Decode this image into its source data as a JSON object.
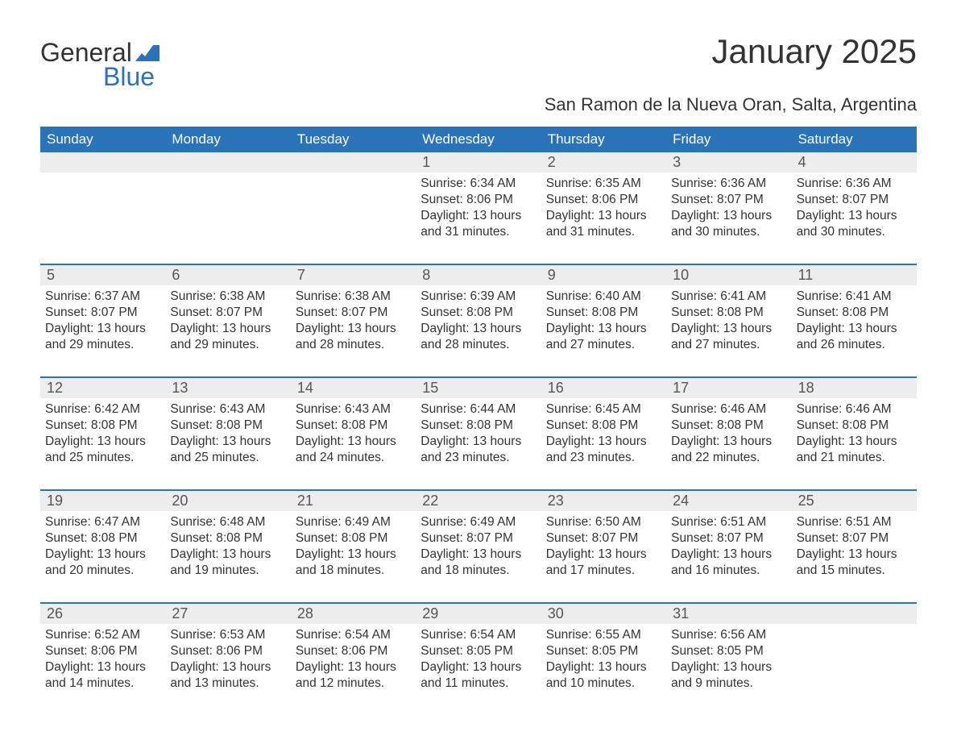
{
  "brand": {
    "line1": "General",
    "line2": "Blue"
  },
  "title": "January 2025",
  "subtitle": "San Ramon de la Nueva Oran, Salta, Argentina",
  "colors": {
    "header_bg": "#2a73b8",
    "header_text": "#ffffff",
    "daynum_bg": "#ededed",
    "text": "#333333",
    "logo_accent": "#2a73b8",
    "page_bg": "#ffffff"
  },
  "typography": {
    "title_fontsize": 42,
    "subtitle_fontsize": 22,
    "weekday_fontsize": 17,
    "daynum_fontsize": 18,
    "detail_fontsize": 15.5
  },
  "weekdays": [
    "Sunday",
    "Monday",
    "Tuesday",
    "Wednesday",
    "Thursday",
    "Friday",
    "Saturday"
  ],
  "weeks": [
    [
      null,
      null,
      null,
      {
        "n": "1",
        "sr": "6:34 AM",
        "ss": "8:06 PM",
        "dl": "13 hours and 31 minutes."
      },
      {
        "n": "2",
        "sr": "6:35 AM",
        "ss": "8:06 PM",
        "dl": "13 hours and 31 minutes."
      },
      {
        "n": "3",
        "sr": "6:36 AM",
        "ss": "8:07 PM",
        "dl": "13 hours and 30 minutes."
      },
      {
        "n": "4",
        "sr": "6:36 AM",
        "ss": "8:07 PM",
        "dl": "13 hours and 30 minutes."
      }
    ],
    [
      {
        "n": "5",
        "sr": "6:37 AM",
        "ss": "8:07 PM",
        "dl": "13 hours and 29 minutes."
      },
      {
        "n": "6",
        "sr": "6:38 AM",
        "ss": "8:07 PM",
        "dl": "13 hours and 29 minutes."
      },
      {
        "n": "7",
        "sr": "6:38 AM",
        "ss": "8:07 PM",
        "dl": "13 hours and 28 minutes."
      },
      {
        "n": "8",
        "sr": "6:39 AM",
        "ss": "8:08 PM",
        "dl": "13 hours and 28 minutes."
      },
      {
        "n": "9",
        "sr": "6:40 AM",
        "ss": "8:08 PM",
        "dl": "13 hours and 27 minutes."
      },
      {
        "n": "10",
        "sr": "6:41 AM",
        "ss": "8:08 PM",
        "dl": "13 hours and 27 minutes."
      },
      {
        "n": "11",
        "sr": "6:41 AM",
        "ss": "8:08 PM",
        "dl": "13 hours and 26 minutes."
      }
    ],
    [
      {
        "n": "12",
        "sr": "6:42 AM",
        "ss": "8:08 PM",
        "dl": "13 hours and 25 minutes."
      },
      {
        "n": "13",
        "sr": "6:43 AM",
        "ss": "8:08 PM",
        "dl": "13 hours and 25 minutes."
      },
      {
        "n": "14",
        "sr": "6:43 AM",
        "ss": "8:08 PM",
        "dl": "13 hours and 24 minutes."
      },
      {
        "n": "15",
        "sr": "6:44 AM",
        "ss": "8:08 PM",
        "dl": "13 hours and 23 minutes."
      },
      {
        "n": "16",
        "sr": "6:45 AM",
        "ss": "8:08 PM",
        "dl": "13 hours and 23 minutes."
      },
      {
        "n": "17",
        "sr": "6:46 AM",
        "ss": "8:08 PM",
        "dl": "13 hours and 22 minutes."
      },
      {
        "n": "18",
        "sr": "6:46 AM",
        "ss": "8:08 PM",
        "dl": "13 hours and 21 minutes."
      }
    ],
    [
      {
        "n": "19",
        "sr": "6:47 AM",
        "ss": "8:08 PM",
        "dl": "13 hours and 20 minutes."
      },
      {
        "n": "20",
        "sr": "6:48 AM",
        "ss": "8:08 PM",
        "dl": "13 hours and 19 minutes."
      },
      {
        "n": "21",
        "sr": "6:49 AM",
        "ss": "8:08 PM",
        "dl": "13 hours and 18 minutes."
      },
      {
        "n": "22",
        "sr": "6:49 AM",
        "ss": "8:07 PM",
        "dl": "13 hours and 18 minutes."
      },
      {
        "n": "23",
        "sr": "6:50 AM",
        "ss": "8:07 PM",
        "dl": "13 hours and 17 minutes."
      },
      {
        "n": "24",
        "sr": "6:51 AM",
        "ss": "8:07 PM",
        "dl": "13 hours and 16 minutes."
      },
      {
        "n": "25",
        "sr": "6:51 AM",
        "ss": "8:07 PM",
        "dl": "13 hours and 15 minutes."
      }
    ],
    [
      {
        "n": "26",
        "sr": "6:52 AM",
        "ss": "8:06 PM",
        "dl": "13 hours and 14 minutes."
      },
      {
        "n": "27",
        "sr": "6:53 AM",
        "ss": "8:06 PM",
        "dl": "13 hours and 13 minutes."
      },
      {
        "n": "28",
        "sr": "6:54 AM",
        "ss": "8:06 PM",
        "dl": "13 hours and 12 minutes."
      },
      {
        "n": "29",
        "sr": "6:54 AM",
        "ss": "8:05 PM",
        "dl": "13 hours and 11 minutes."
      },
      {
        "n": "30",
        "sr": "6:55 AM",
        "ss": "8:05 PM",
        "dl": "13 hours and 10 minutes."
      },
      {
        "n": "31",
        "sr": "6:56 AM",
        "ss": "8:05 PM",
        "dl": "13 hours and 9 minutes."
      },
      null
    ]
  ],
  "labels": {
    "sunrise": "Sunrise: ",
    "sunset": "Sunset: ",
    "daylight": "Daylight: "
  }
}
